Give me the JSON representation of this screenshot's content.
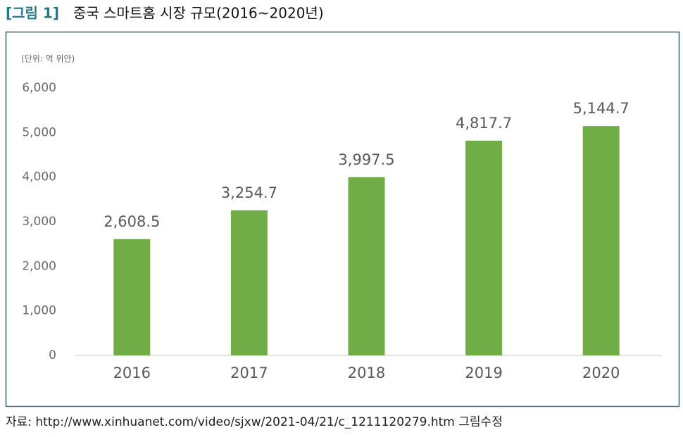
{
  "chart_data": {
    "type": "bar",
    "figure_label": "[그림 1]",
    "title": "중국 스마트홈 시장 규모(2016~2020년)",
    "unit_label": "(단위: 억 위안)",
    "source": "자료: http://www.xinhuanet.com/video/sjxw/2021-04/21/c_1211120279.htm 그림수정",
    "categories": [
      "2016",
      "2017",
      "2018",
      "2019",
      "2020"
    ],
    "values": [
      2608.5,
      3254.7,
      3997.5,
      4817.7,
      5144.7
    ],
    "value_labels": [
      "2,608.5",
      "3,254.7",
      "3,997.5",
      "4,817.7",
      "5,144.7"
    ],
    "color": "#70ad47",
    "ylim": [
      0,
      6000
    ],
    "yticks": [
      0,
      {
        "value": 1000,
        "label": "1,000"
      },
      {
        "value": 2000,
        "label": "2,000"
      },
      {
        "value": 3000,
        "label": "3,000"
      },
      {
        "value": 4000,
        "label": "4,000"
      },
      {
        "value": 5000,
        "label": "5,000"
      },
      {
        "value": 6000,
        "label": "6,000"
      }
    ],
    "grid": false
  }
}
